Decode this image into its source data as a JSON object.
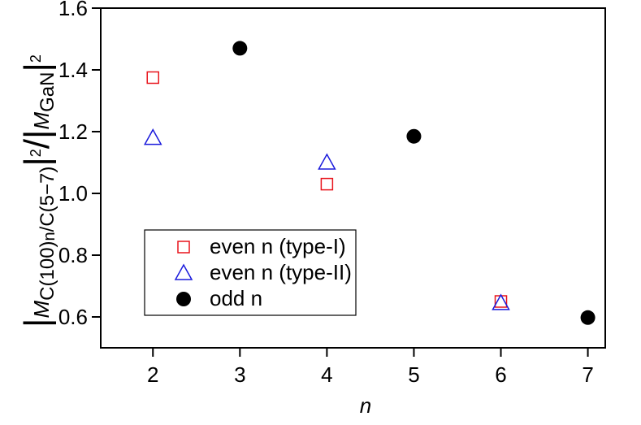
{
  "chart_data": {
    "type": "scatter",
    "xlabel": "n",
    "ylabel": [
      {
        "text": "|",
        "style": "normal"
      },
      {
        "text": "M",
        "style": "italic"
      },
      {
        "text": "C(100)",
        "style": "sub"
      },
      {
        "text": "n",
        "style": "subsub"
      },
      {
        "text": "/C(5−7)",
        "style": "sub"
      },
      {
        "text": "|",
        "style": "normal"
      },
      {
        "text": "2",
        "style": "sup"
      },
      {
        "text": "/|",
        "style": "normal"
      },
      {
        "text": "M",
        "style": "italic"
      },
      {
        "text": "GaN",
        "style": "sub"
      },
      {
        "text": "|",
        "style": "normal"
      },
      {
        "text": "2",
        "style": "sup"
      }
    ],
    "xlim": [
      1.4,
      7.2
    ],
    "ylim": [
      0.5,
      1.6
    ],
    "xticks": [
      2,
      3,
      4,
      5,
      6,
      7
    ],
    "yticks": [
      {
        "value": 0.6,
        "label": "0.6"
      },
      {
        "value": 0.8,
        "label": "0.8"
      },
      {
        "value": 1.0,
        "label": "1.0"
      },
      {
        "value": 1.2,
        "label": "1.2"
      },
      {
        "value": 1.4,
        "label": "1.4"
      },
      {
        "value": 1.6,
        "label": "1.6"
      }
    ],
    "legend": "lower left",
    "series": [
      {
        "name": "even n (type-I)",
        "color": "#e8141c",
        "marker": "square",
        "x": [
          2,
          4,
          6
        ],
        "values": [
          1.375,
          1.03,
          0.65
        ]
      },
      {
        "name": "even n (type-II)",
        "color": "#1a1adc",
        "marker": "triangle",
        "x": [
          2,
          4,
          6
        ],
        "values": [
          1.18,
          1.1,
          0.645
        ]
      },
      {
        "name": "odd n",
        "color": "#000000",
        "marker": "circle",
        "x": [
          3,
          5,
          7
        ],
        "values": [
          1.47,
          1.185,
          0.598
        ]
      }
    ]
  }
}
